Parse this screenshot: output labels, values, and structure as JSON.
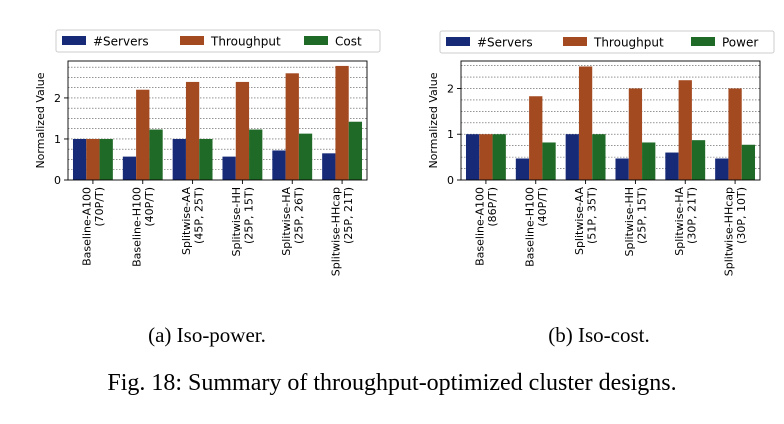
{
  "figure": {
    "caption": "Fig. 18: Summary of throughput-optimized cluster designs."
  },
  "colors": {
    "servers": "#172a78",
    "throughput": "#a44a21",
    "third": "#1f6a26"
  },
  "chart_data": [
    {
      "type": "bar",
      "subcaption": "(a) Iso-power.",
      "ylabel": "Normalized Value",
      "ylim": [
        0,
        2.9
      ],
      "yticks": [
        0,
        1,
        2
      ],
      "grid": "horizontal dotted lines every 0.25",
      "legend_position": "top",
      "categories": [
        [
          "Baseline-A100",
          "(70P/T)"
        ],
        [
          "Baseline-H100",
          "(40P/T)"
        ],
        [
          "Splitwise-AA",
          "(45P, 25T)"
        ],
        [
          "Splitwise-HH",
          "(25P, 15T)"
        ],
        [
          "Splitwise-HA",
          "(25P, 26T)"
        ],
        [
          "Splitwise-HHcap",
          "(25P, 21T)"
        ]
      ],
      "series": [
        {
          "name": "#Servers",
          "values": [
            1.0,
            0.57,
            1.0,
            0.57,
            0.72,
            0.65
          ]
        },
        {
          "name": "Throughput",
          "values": [
            1.0,
            2.2,
            2.39,
            2.39,
            2.6,
            2.78
          ]
        },
        {
          "name": "Cost",
          "values": [
            1.0,
            1.23,
            1.0,
            1.23,
            1.13,
            1.42
          ]
        }
      ]
    },
    {
      "type": "bar",
      "subcaption": "(b) Iso-cost.",
      "ylabel": "Normalized Value",
      "ylim": [
        0,
        2.6
      ],
      "yticks": [
        0,
        1,
        2
      ],
      "grid": "horizontal dotted lines every 0.25",
      "legend_position": "top",
      "categories": [
        [
          "Baseline-A100",
          "(86P/T)"
        ],
        [
          "Baseline-H100",
          "(40P/T)"
        ],
        [
          "Splitwise-AA",
          "(51P, 35T)"
        ],
        [
          "Splitwise-HH",
          "(25P, 15T)"
        ],
        [
          "Splitwise-HA",
          "(30P, 21T)"
        ],
        [
          "Splitwise-HHcap",
          "(30P, 10T)"
        ]
      ],
      "series": [
        {
          "name": "#Servers",
          "values": [
            1.0,
            0.47,
            1.0,
            0.47,
            0.6,
            0.47
          ]
        },
        {
          "name": "Throughput",
          "values": [
            1.0,
            1.83,
            2.48,
            2.0,
            2.18,
            2.0
          ]
        },
        {
          "name": "Power",
          "values": [
            1.0,
            0.82,
            1.0,
            0.82,
            0.87,
            0.77
          ]
        }
      ]
    }
  ]
}
